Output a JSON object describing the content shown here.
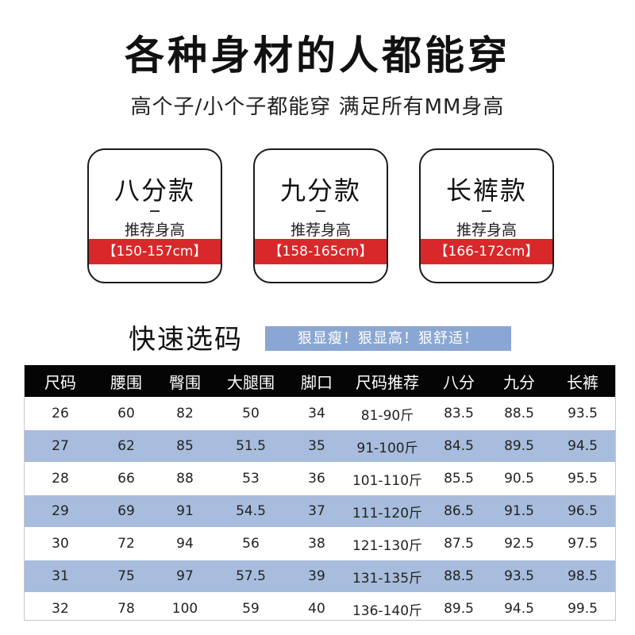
{
  "header": {
    "title": "各种身材的人都能穿",
    "subtitle": "高个子/小个子都能穿 满足所有MM身高"
  },
  "cards": [
    {
      "name": "八分款",
      "recommend_label": "推荐身高",
      "range": "【150-157cm】"
    },
    {
      "name": "九分款",
      "recommend_label": "推荐身高",
      "range": "【158-165cm】"
    },
    {
      "name": "长裤款",
      "recommend_label": "推荐身高",
      "range": "【166-172cm】"
    }
  ],
  "section": {
    "title": "快速选码",
    "slogan": "狠显瘦！狠显高！狠舒适！"
  },
  "table": {
    "headers": [
      "尺码",
      "腰围",
      "臀围",
      "大腿围",
      "脚口",
      "尺码推荐",
      "八分",
      "九分",
      "长裤"
    ],
    "rows": [
      [
        "26",
        "60",
        "82",
        "50",
        "34",
        "81-90斤",
        "83.5",
        "88.5",
        "93.5"
      ],
      [
        "27",
        "62",
        "85",
        "51.5",
        "35",
        "91-100斤",
        "84.5",
        "89.5",
        "94.5"
      ],
      [
        "28",
        "66",
        "88",
        "53",
        "36",
        "101-110斤",
        "85.5",
        "90.5",
        "95.5"
      ],
      [
        "29",
        "69",
        "91",
        "54.5",
        "37",
        "111-120斤",
        "86.5",
        "91.5",
        "96.5"
      ],
      [
        "30",
        "72",
        "94",
        "56",
        "38",
        "121-130斤",
        "87.5",
        "92.5",
        "97.5"
      ],
      [
        "31",
        "75",
        "97",
        "57.5",
        "39",
        "131-135斤",
        "88.5",
        "93.5",
        "98.5"
      ],
      [
        "32",
        "78",
        "100",
        "59",
        "40",
        "136-140斤",
        "89.5",
        "94.5",
        "99.5"
      ]
    ]
  },
  "colors": {
    "accent_red": "#d8282a",
    "row_blue": "#a8bddd",
    "slogan_blue": "#8aa6d3",
    "header_black": "#050505"
  }
}
